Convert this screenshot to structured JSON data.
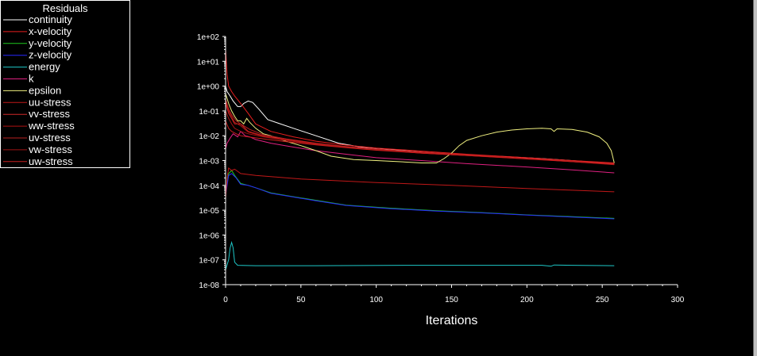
{
  "chart_data": {
    "type": "line",
    "title": "",
    "xlabel": "Iterations",
    "ylabel": "",
    "yscale": "log",
    "xlim": [
      0,
      300
    ],
    "ylim": [
      1e-08,
      100
    ],
    "x_ticks": [
      "0",
      "50",
      "100",
      "150",
      "200",
      "250",
      "300"
    ],
    "y_ticks": [
      "1e+02",
      "1e+01",
      "1e+00",
      "1e-01",
      "1e-02",
      "1e-03",
      "1e-04",
      "1e-05",
      "1e-06",
      "1e-07",
      "1e-08"
    ],
    "legend": {
      "title": "Residuals",
      "placement": "top-left"
    },
    "series": [
      {
        "name": "continuity",
        "color": "#ffffff",
        "points": [
          [
            0,
            1
          ],
          [
            1,
            0.6
          ],
          [
            3,
            0.4
          ],
          [
            5,
            0.25
          ],
          [
            8,
            0.15
          ],
          [
            10,
            0.15
          ],
          [
            12,
            0.2
          ],
          [
            15,
            0.25
          ],
          [
            18,
            0.22
          ],
          [
            22,
            0.12
          ],
          [
            28,
            0.045
          ],
          [
            35,
            0.032
          ],
          [
            45,
            0.02
          ],
          [
            60,
            0.01
          ],
          [
            75,
            0.005
          ],
          [
            90,
            0.0035
          ],
          [
            110,
            0.0028
          ],
          [
            130,
            0.0022
          ],
          [
            150,
            0.0018
          ],
          [
            180,
            0.0015
          ],
          [
            210,
            0.0012
          ],
          [
            240,
            0.0009
          ],
          [
            258,
            0.0007
          ]
        ]
      },
      {
        "name": "x-velocity",
        "color": "#e81e1e",
        "points": [
          [
            0,
            30
          ],
          [
            1,
            3
          ],
          [
            2,
            1
          ],
          [
            4,
            0.6
          ],
          [
            6,
            0.4
          ],
          [
            10,
            0.2
          ],
          [
            15,
            0.08
          ],
          [
            20,
            0.03
          ],
          [
            30,
            0.015
          ],
          [
            45,
            0.009
          ],
          [
            60,
            0.006
          ],
          [
            80,
            0.0042
          ],
          [
            100,
            0.0032
          ],
          [
            130,
            0.0024
          ],
          [
            160,
            0.0018
          ],
          [
            200,
            0.0013
          ],
          [
            230,
            0.001
          ],
          [
            258,
            0.0008
          ]
        ]
      },
      {
        "name": "y-velocity",
        "color": "#1ec81e",
        "points": [
          [
            0,
            5e-05
          ],
          [
            2,
            0.0003
          ],
          [
            4,
            0.0004
          ],
          [
            6,
            0.00025
          ],
          [
            10,
            0.00012
          ],
          [
            15,
            0.0001
          ],
          [
            20,
            8e-05
          ],
          [
            30,
            5e-05
          ],
          [
            45,
            3.5e-05
          ],
          [
            60,
            2.5e-05
          ],
          [
            80,
            1.6e-05
          ],
          [
            110,
            1.2e-05
          ],
          [
            140,
            9.5e-06
          ],
          [
            170,
            8e-06
          ],
          [
            200,
            6.5e-06
          ],
          [
            230,
            5.5e-06
          ],
          [
            258,
            4.7e-06
          ]
        ]
      },
      {
        "name": "z-velocity",
        "color": "#2828ff",
        "points": [
          [
            0,
            4e-05
          ],
          [
            2,
            0.00025
          ],
          [
            4,
            0.0003
          ],
          [
            7,
            0.0002
          ],
          [
            10,
            0.00011
          ],
          [
            15,
            0.0001
          ],
          [
            20,
            8e-05
          ],
          [
            30,
            4.8e-05
          ],
          [
            45,
            3.4e-05
          ],
          [
            60,
            2.4e-05
          ],
          [
            80,
            1.55e-05
          ],
          [
            110,
            1.15e-05
          ],
          [
            140,
            9.2e-06
          ],
          [
            170,
            7.8e-06
          ],
          [
            200,
            6.4e-06
          ],
          [
            230,
            5.3e-06
          ],
          [
            258,
            4.5e-06
          ]
        ]
      },
      {
        "name": "energy",
        "color": "#1ec8c8",
        "points": [
          [
            0,
            4e-08
          ],
          [
            2,
            1e-07
          ],
          [
            3,
            3e-07
          ],
          [
            4,
            5e-07
          ],
          [
            5,
            3e-07
          ],
          [
            6,
            8e-08
          ],
          [
            8,
            6e-08
          ],
          [
            20,
            5.8e-08
          ],
          [
            60,
            5.8e-08
          ],
          [
            120,
            6e-08
          ],
          [
            160,
            6e-08
          ],
          [
            210,
            6e-08
          ],
          [
            216,
            5.5e-08
          ],
          [
            218,
            6.2e-08
          ],
          [
            230,
            6e-08
          ],
          [
            258,
            5.8e-08
          ]
        ]
      },
      {
        "name": "k",
        "color": "#e02080",
        "points": [
          [
            0,
            0.003
          ],
          [
            1,
            0.005
          ],
          [
            3,
            0.008
          ],
          [
            5,
            0.012
          ],
          [
            8,
            0.009
          ],
          [
            10,
            0.015
          ],
          [
            13,
            0.01
          ],
          [
            16,
            0.009
          ],
          [
            20,
            0.007
          ],
          [
            30,
            0.005
          ],
          [
            45,
            0.0035
          ],
          [
            60,
            0.0025
          ],
          [
            80,
            0.0018
          ],
          [
            100,
            0.0013
          ],
          [
            130,
            0.001
          ],
          [
            160,
            0.00075
          ],
          [
            200,
            0.00055
          ],
          [
            230,
            0.00042
          ],
          [
            258,
            0.00032
          ]
        ]
      },
      {
        "name": "epsilon",
        "color": "#f0f080",
        "points": [
          [
            0,
            0.5
          ],
          [
            2,
            0.2
          ],
          [
            4,
            0.1
          ],
          [
            6,
            0.06
          ],
          [
            8,
            0.04
          ],
          [
            10,
            0.04
          ],
          [
            12,
            0.03
          ],
          [
            14,
            0.05
          ],
          [
            16,
            0.035
          ],
          [
            20,
            0.02
          ],
          [
            25,
            0.012
          ],
          [
            30,
            0.01
          ],
          [
            40,
            0.006
          ],
          [
            50,
            0.004
          ],
          [
            60,
            0.0025
          ],
          [
            70,
            0.0015
          ],
          [
            85,
            0.0011
          ],
          [
            100,
            0.001
          ],
          [
            115,
            0.0009
          ],
          [
            130,
            0.0008
          ],
          [
            140,
            0.0008
          ],
          [
            145,
            0.0012
          ],
          [
            150,
            0.002
          ],
          [
            155,
            0.004
          ],
          [
            160,
            0.0065
          ],
          [
            170,
            0.01
          ],
          [
            180,
            0.014
          ],
          [
            190,
            0.017
          ],
          [
            200,
            0.019
          ],
          [
            210,
            0.02
          ],
          [
            216,
            0.019
          ],
          [
            218,
            0.015
          ],
          [
            220,
            0.019
          ],
          [
            230,
            0.018
          ],
          [
            240,
            0.014
          ],
          [
            248,
            0.009
          ],
          [
            253,
            0.005
          ],
          [
            256,
            0.0025
          ],
          [
            258,
            0.0008
          ]
        ]
      },
      {
        "name": "uu-stress",
        "color": "#c01818",
        "points": [
          [
            0,
            3e-05
          ],
          [
            1,
            0.0002
          ],
          [
            2,
            0.0005
          ],
          [
            4,
            0.0004
          ],
          [
            6,
            0.00045
          ],
          [
            10,
            0.0003
          ],
          [
            20,
            0.00025
          ],
          [
            50,
            0.00018
          ],
          [
            100,
            0.00013
          ],
          [
            150,
            0.0001
          ],
          [
            200,
            7.5e-05
          ],
          [
            258,
            5.5e-05
          ]
        ]
      },
      {
        "name": "vv-stress",
        "color": "#d02828",
        "points": [
          [
            0,
            0.2
          ],
          [
            2,
            0.08
          ],
          [
            4,
            0.05
          ],
          [
            6,
            0.03
          ],
          [
            10,
            0.03
          ],
          [
            15,
            0.015
          ],
          [
            25,
            0.01
          ],
          [
            40,
            0.007
          ],
          [
            60,
            0.0048
          ],
          [
            80,
            0.0036
          ],
          [
            100,
            0.0028
          ],
          [
            130,
            0.0021
          ],
          [
            160,
            0.0017
          ],
          [
            200,
            0.0012
          ],
          [
            230,
            0.00095
          ],
          [
            258,
            0.00075
          ]
        ]
      },
      {
        "name": "ww-stress",
        "color": "#b01010",
        "points": [
          [
            0,
            0.25
          ],
          [
            2,
            0.1
          ],
          [
            4,
            0.06
          ],
          [
            6,
            0.035
          ],
          [
            10,
            0.025
          ],
          [
            15,
            0.014
          ],
          [
            25,
            0.0095
          ],
          [
            40,
            0.0068
          ],
          [
            60,
            0.0046
          ],
          [
            80,
            0.0035
          ],
          [
            100,
            0.0027
          ],
          [
            130,
            0.002
          ],
          [
            160,
            0.0016
          ],
          [
            200,
            0.00115
          ],
          [
            230,
            0.0009
          ],
          [
            258,
            0.0007
          ]
        ]
      },
      {
        "name": "uv-stress",
        "color": "#b82020",
        "points": [
          [
            0,
            0.3
          ],
          [
            2,
            0.12
          ],
          [
            4,
            0.07
          ],
          [
            7,
            0.04
          ],
          [
            10,
            0.03
          ],
          [
            16,
            0.018
          ],
          [
            25,
            0.011
          ],
          [
            40,
            0.0075
          ],
          [
            60,
            0.005
          ],
          [
            80,
            0.0037
          ],
          [
            100,
            0.0029
          ],
          [
            130,
            0.0022
          ],
          [
            160,
            0.0017
          ],
          [
            200,
            0.0012
          ],
          [
            230,
            0.00095
          ],
          [
            258,
            0.00072
          ]
        ]
      },
      {
        "name": "vw-stress",
        "color": "#a01414",
        "points": [
          [
            0,
            0.1
          ],
          [
            2,
            0.05
          ],
          [
            4,
            0.03
          ],
          [
            6,
            0.02
          ],
          [
            10,
            0.015
          ],
          [
            15,
            0.012
          ],
          [
            25,
            0.009
          ],
          [
            40,
            0.0065
          ],
          [
            60,
            0.0045
          ],
          [
            80,
            0.0034
          ],
          [
            100,
            0.0027
          ],
          [
            130,
            0.002
          ],
          [
            160,
            0.0016
          ],
          [
            200,
            0.0012
          ],
          [
            230,
            0.0009
          ],
          [
            258,
            0.00068
          ]
        ]
      },
      {
        "name": "uw-stress",
        "color": "#c81e1e",
        "points": [
          [
            0,
            0.04
          ],
          [
            2,
            0.02
          ],
          [
            4,
            0.015
          ],
          [
            7,
            0.012
          ],
          [
            10,
            0.01
          ],
          [
            15,
            0.009
          ],
          [
            25,
            0.0075
          ],
          [
            40,
            0.0058
          ],
          [
            60,
            0.0043
          ],
          [
            80,
            0.0033
          ],
          [
            100,
            0.0026
          ],
          [
            130,
            0.002
          ],
          [
            160,
            0.0016
          ],
          [
            200,
            0.00118
          ],
          [
            230,
            0.0009
          ],
          [
            258,
            0.0007
          ]
        ]
      }
    ]
  }
}
